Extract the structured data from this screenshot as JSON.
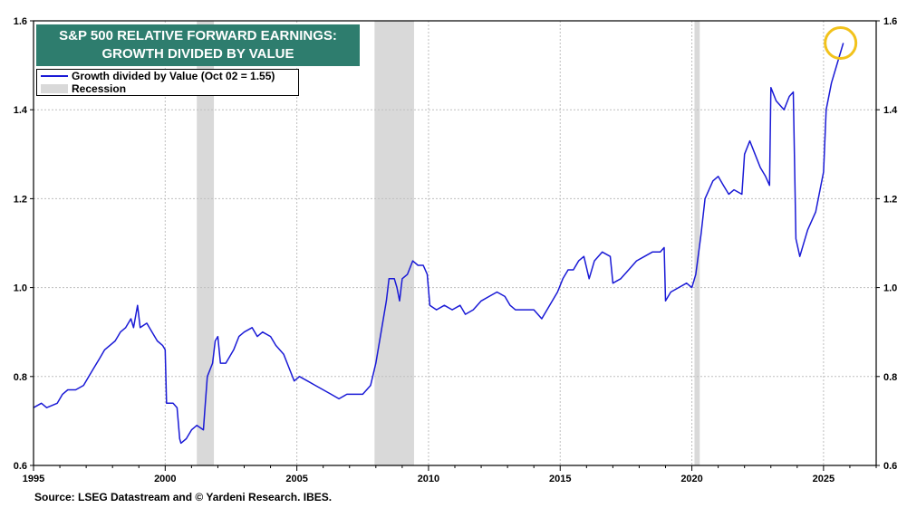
{
  "chart_data": {
    "type": "line",
    "title_line1": "S&P 500 RELATIVE FORWARD EARNINGS:",
    "title_line2": "GROWTH DIVIDED BY VALUE",
    "legend": {
      "series_label": "Growth divided by Value (Oct 02 = 1.55)",
      "recession_label": "Recession"
    },
    "source": "Source: LSEG Datastream and © Yardeni Research. IBES.",
    "xlim": [
      1995,
      2027
    ],
    "ylim": [
      0.6,
      1.6
    ],
    "x_ticks": [
      1995,
      2000,
      2005,
      2010,
      2015,
      2020,
      2025
    ],
    "y_ticks": [
      0.6,
      0.8,
      1.0,
      1.2,
      1.4,
      1.6
    ],
    "y_tick_labels": [
      "0.6",
      "0.8",
      "1.0",
      "1.2",
      "1.4",
      "1.6"
    ],
    "recessions": [
      [
        2001.2,
        2001.85
      ],
      [
        2007.95,
        2009.45
      ],
      [
        2020.1,
        2020.3
      ]
    ],
    "highlight_point": [
      2025.75,
      1.55
    ],
    "series": [
      {
        "name": "Growth divided by Value",
        "color": "#1a1ad6",
        "points": [
          [
            1995.0,
            0.73
          ],
          [
            1995.3,
            0.74
          ],
          [
            1995.5,
            0.73
          ],
          [
            1995.9,
            0.74
          ],
          [
            1996.1,
            0.76
          ],
          [
            1996.3,
            0.77
          ],
          [
            1996.6,
            0.77
          ],
          [
            1996.9,
            0.78
          ],
          [
            1997.1,
            0.8
          ],
          [
            1997.3,
            0.82
          ],
          [
            1997.5,
            0.84
          ],
          [
            1997.7,
            0.86
          ],
          [
            1997.9,
            0.87
          ],
          [
            1998.1,
            0.88
          ],
          [
            1998.3,
            0.9
          ],
          [
            1998.5,
            0.91
          ],
          [
            1998.7,
            0.93
          ],
          [
            1998.8,
            0.91
          ],
          [
            1998.95,
            0.96
          ],
          [
            1999.05,
            0.91
          ],
          [
            1999.3,
            0.92
          ],
          [
            1999.5,
            0.9
          ],
          [
            1999.7,
            0.88
          ],
          [
            1999.9,
            0.87
          ],
          [
            2000.0,
            0.86
          ],
          [
            2000.05,
            0.74
          ],
          [
            2000.3,
            0.74
          ],
          [
            2000.45,
            0.73
          ],
          [
            2000.55,
            0.66
          ],
          [
            2000.6,
            0.65
          ],
          [
            2000.8,
            0.66
          ],
          [
            2001.0,
            0.68
          ],
          [
            2001.2,
            0.69
          ],
          [
            2001.45,
            0.68
          ],
          [
            2001.5,
            0.72
          ],
          [
            2001.6,
            0.8
          ],
          [
            2001.8,
            0.83
          ],
          [
            2001.9,
            0.88
          ],
          [
            2002.0,
            0.89
          ],
          [
            2002.1,
            0.83
          ],
          [
            2002.3,
            0.83
          ],
          [
            2002.6,
            0.86
          ],
          [
            2002.8,
            0.89
          ],
          [
            2003.0,
            0.9
          ],
          [
            2003.3,
            0.91
          ],
          [
            2003.5,
            0.89
          ],
          [
            2003.7,
            0.9
          ],
          [
            2004.0,
            0.89
          ],
          [
            2004.2,
            0.87
          ],
          [
            2004.5,
            0.85
          ],
          [
            2004.7,
            0.82
          ],
          [
            2004.9,
            0.79
          ],
          [
            2005.1,
            0.8
          ],
          [
            2005.4,
            0.79
          ],
          [
            2005.7,
            0.78
          ],
          [
            2006.0,
            0.77
          ],
          [
            2006.3,
            0.76
          ],
          [
            2006.6,
            0.75
          ],
          [
            2006.9,
            0.76
          ],
          [
            2007.2,
            0.76
          ],
          [
            2007.5,
            0.76
          ],
          [
            2007.8,
            0.78
          ],
          [
            2008.0,
            0.83
          ],
          [
            2008.2,
            0.9
          ],
          [
            2008.4,
            0.97
          ],
          [
            2008.5,
            1.02
          ],
          [
            2008.7,
            1.02
          ],
          [
            2008.8,
            1.0
          ],
          [
            2008.9,
            0.97
          ],
          [
            2009.0,
            1.02
          ],
          [
            2009.2,
            1.03
          ],
          [
            2009.4,
            1.06
          ],
          [
            2009.6,
            1.05
          ],
          [
            2009.8,
            1.05
          ],
          [
            2009.95,
            1.03
          ],
          [
            2010.05,
            0.96
          ],
          [
            2010.3,
            0.95
          ],
          [
            2010.6,
            0.96
          ],
          [
            2010.9,
            0.95
          ],
          [
            2011.2,
            0.96
          ],
          [
            2011.4,
            0.94
          ],
          [
            2011.7,
            0.95
          ],
          [
            2012.0,
            0.97
          ],
          [
            2012.3,
            0.98
          ],
          [
            2012.6,
            0.99
          ],
          [
            2012.9,
            0.98
          ],
          [
            2013.1,
            0.96
          ],
          [
            2013.3,
            0.95
          ],
          [
            2013.6,
            0.95
          ],
          [
            2014.0,
            0.95
          ],
          [
            2014.3,
            0.93
          ],
          [
            2014.6,
            0.96
          ],
          [
            2014.9,
            0.99
          ],
          [
            2015.1,
            1.02
          ],
          [
            2015.3,
            1.04
          ],
          [
            2015.5,
            1.04
          ],
          [
            2015.7,
            1.06
          ],
          [
            2015.9,
            1.07
          ],
          [
            2016.1,
            1.02
          ],
          [
            2016.3,
            1.06
          ],
          [
            2016.6,
            1.08
          ],
          [
            2016.9,
            1.07
          ],
          [
            2017.0,
            1.01
          ],
          [
            2017.3,
            1.02
          ],
          [
            2017.6,
            1.04
          ],
          [
            2017.9,
            1.06
          ],
          [
            2018.2,
            1.07
          ],
          [
            2018.5,
            1.08
          ],
          [
            2018.8,
            1.08
          ],
          [
            2018.95,
            1.09
          ],
          [
            2019.0,
            0.97
          ],
          [
            2019.2,
            0.99
          ],
          [
            2019.5,
            1.0
          ],
          [
            2019.8,
            1.01
          ],
          [
            2020.0,
            1.0
          ],
          [
            2020.15,
            1.03
          ],
          [
            2020.35,
            1.12
          ],
          [
            2020.5,
            1.2
          ],
          [
            2020.8,
            1.24
          ],
          [
            2021.0,
            1.25
          ],
          [
            2021.2,
            1.23
          ],
          [
            2021.4,
            1.21
          ],
          [
            2021.6,
            1.22
          ],
          [
            2021.9,
            1.21
          ],
          [
            2022.0,
            1.3
          ],
          [
            2022.2,
            1.33
          ],
          [
            2022.4,
            1.3
          ],
          [
            2022.6,
            1.27
          ],
          [
            2022.8,
            1.25
          ],
          [
            2022.95,
            1.23
          ],
          [
            2023.0,
            1.45
          ],
          [
            2023.2,
            1.42
          ],
          [
            2023.5,
            1.4
          ],
          [
            2023.7,
            1.43
          ],
          [
            2023.85,
            1.44
          ],
          [
            2023.95,
            1.11
          ],
          [
            2024.1,
            1.07
          ],
          [
            2024.4,
            1.13
          ],
          [
            2024.7,
            1.17
          ],
          [
            2025.0,
            1.26
          ],
          [
            2025.1,
            1.4
          ],
          [
            2025.3,
            1.46
          ],
          [
            2025.5,
            1.5
          ],
          [
            2025.75,
            1.55
          ]
        ]
      }
    ]
  }
}
